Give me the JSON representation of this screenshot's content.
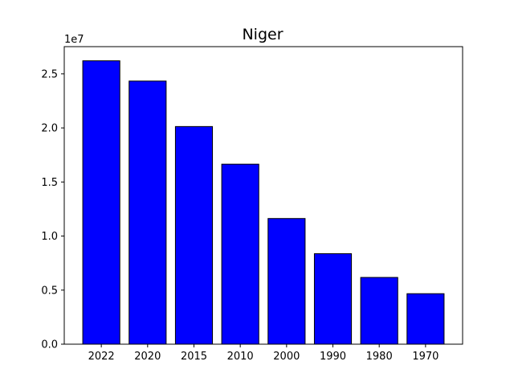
{
  "chart_data": {
    "type": "bar",
    "title": "Niger",
    "xlabel": "",
    "ylabel": "",
    "categories": [
      "2022",
      "2020",
      "2015",
      "2010",
      "2000",
      "1990",
      "1980",
      "1970"
    ],
    "values": [
      26207977,
      24333639,
      20128124,
      16647543,
      11622665,
      8370647,
      6173177,
      4669708
    ],
    "ylim": [
      0,
      27517375
    ],
    "y_ticks": [
      0,
      5000000,
      10000000,
      15000000,
      20000000,
      25000000
    ],
    "y_tick_labels": [
      "0.0",
      "0.5",
      "1.0",
      "1.5",
      "2.0",
      "2.5"
    ],
    "y_multiplier_label": "1e7",
    "bar_color": "#0000ff",
    "edge_color": "#000000",
    "grid": false,
    "legend": "none"
  }
}
